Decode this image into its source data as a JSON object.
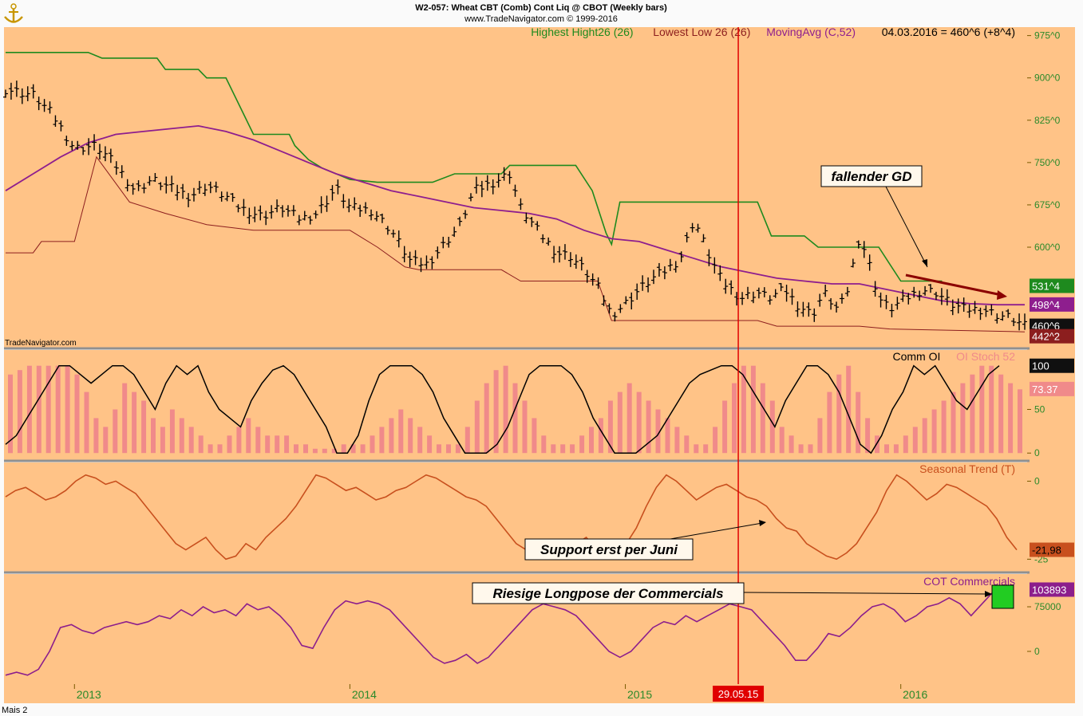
{
  "header": {
    "title": "W2-057:  Wheat CBT (Comb) Cont Liq @ CBOT  (Weekly bars)",
    "subtitle": "www.TradeNavigator.com © 1999-2016",
    "watermark": "TradeNavigator.com",
    "footer": "Mais 2",
    "logo_icon": "anchor-icon"
  },
  "colors": {
    "background": "#ffc387",
    "panel_border": "#909090",
    "green": "#1e8a1e",
    "purple": "#8e1e8e",
    "maroon": "#7d1e32",
    "orange_line": "#c8501e",
    "stoch_bar": "#f08a8a",
    "red_marker": "#e00000",
    "cot_line": "#8c1e8c"
  },
  "chart_data": [
    {
      "type": "ohlc",
      "name": "price-panel",
      "legend": [
        {
          "label": "Highest Hight26 (26)",
          "color": "#1e8a1e"
        },
        {
          "label": "Lowest Low 26 (26)",
          "color": "#8c1e1e"
        },
        {
          "label": "MovingAvg (C,52)",
          "color": "#8e1e8e"
        },
        {
          "label": "04.03.2016 = 460^6 (+8^4)",
          "color": "#000000"
        }
      ],
      "y_ticks": [
        "975^0",
        "900^0",
        "825^0",
        "750^0",
        "675^0",
        "600^0"
      ],
      "y_tick_values": [
        975,
        900,
        825,
        750,
        675,
        600
      ],
      "ylim": [
        422,
        990
      ],
      "value_tags": [
        {
          "label": "531^4",
          "value": 531.5,
          "bg": "#1e8a1e",
          "fg": "#ffffff"
        },
        {
          "label": "498^4",
          "value": 498.5,
          "bg": "#8e1e8e",
          "fg": "#ffffff"
        },
        {
          "label": "460^6",
          "value": 460.75,
          "bg": "#101010",
          "fg": "#ffffff"
        },
        {
          "label": "442^2",
          "value": 442.25,
          "bg": "#8c1e1e",
          "fg": "#ffffff"
        }
      ],
      "annotations": [
        {
          "text": "fallender GD",
          "type": "callout"
        }
      ],
      "x_range": [
        "2012-09",
        "2016-03"
      ],
      "series_points": {
        "close": [
          [
            2012.75,
            880
          ],
          [
            2012.85,
            870
          ],
          [
            2012.92,
            835
          ],
          [
            2013.0,
            775
          ],
          [
            2013.08,
            780
          ],
          [
            2013.15,
            745
          ],
          [
            2013.22,
            700
          ],
          [
            2013.28,
            720
          ],
          [
            2013.35,
            705
          ],
          [
            2013.42,
            690
          ],
          [
            2013.48,
            710
          ],
          [
            2013.55,
            690
          ],
          [
            2013.6,
            670
          ],
          [
            2013.68,
            655
          ],
          [
            2013.75,
            670
          ],
          [
            2013.82,
            650
          ],
          [
            2013.88,
            660
          ],
          [
            2013.95,
            705
          ],
          [
            2014.0,
            670
          ],
          [
            2014.08,
            665
          ],
          [
            2014.15,
            630
          ],
          [
            2014.22,
            575
          ],
          [
            2014.28,
            570
          ],
          [
            2014.35,
            610
          ],
          [
            2014.4,
            640
          ],
          [
            2014.45,
            700
          ],
          [
            2014.52,
            715
          ],
          [
            2014.58,
            730
          ],
          [
            2014.62,
            670
          ],
          [
            2014.68,
            630
          ],
          [
            2014.75,
            590
          ],
          [
            2014.8,
            585
          ],
          [
            2014.85,
            560
          ],
          [
            2014.9,
            530
          ],
          [
            2014.95,
            480
          ],
          [
            2015.0,
            500
          ],
          [
            2015.05,
            525
          ],
          [
            2015.1,
            545
          ],
          [
            2015.15,
            560
          ],
          [
            2015.2,
            580
          ],
          [
            2015.25,
            650
          ],
          [
            2015.3,
            590
          ],
          [
            2015.35,
            540
          ],
          [
            2015.42,
            510
          ],
          [
            2015.48,
            520
          ],
          [
            2015.52,
            510
          ],
          [
            2015.58,
            525
          ],
          [
            2015.62,
            500
          ],
          [
            2015.68,
            480
          ],
          [
            2015.72,
            520
          ],
          [
            2015.77,
            490
          ],
          [
            2015.8,
            510
          ],
          [
            2015.85,
            620
          ],
          [
            2015.88,
            580
          ],
          [
            2015.92,
            510
          ],
          [
            2015.96,
            490
          ],
          [
            2016.02,
            510
          ],
          [
            2016.08,
            525
          ],
          [
            2016.13,
            520
          ],
          [
            2016.18,
            500
          ],
          [
            2016.23,
            490
          ],
          [
            2016.3,
            490
          ],
          [
            2016.35,
            480
          ],
          [
            2016.4,
            475
          ],
          [
            2016.45,
            460
          ]
        ],
        "highest_high_26": [
          [
            2012.75,
            945
          ],
          [
            2013.05,
            945
          ],
          [
            2013.1,
            935
          ],
          [
            2013.3,
            935
          ],
          [
            2013.33,
            915
          ],
          [
            2013.45,
            915
          ],
          [
            2013.48,
            900
          ],
          [
            2013.55,
            900
          ],
          [
            2013.6,
            850
          ],
          [
            2013.65,
            800
          ],
          [
            2013.78,
            800
          ],
          [
            2013.8,
            780
          ],
          [
            2013.85,
            755
          ],
          [
            2013.9,
            740
          ],
          [
            2014.0,
            720
          ],
          [
            2014.1,
            715
          ],
          [
            2014.3,
            715
          ],
          [
            2014.38,
            730
          ],
          [
            2014.55,
            730
          ],
          [
            2014.58,
            745
          ],
          [
            2014.82,
            745
          ],
          [
            2014.88,
            700
          ],
          [
            2014.93,
            625
          ],
          [
            2014.95,
            605
          ],
          [
            2014.98,
            680
          ],
          [
            2015.48,
            680
          ],
          [
            2015.53,
            620
          ],
          [
            2015.65,
            620
          ],
          [
            2015.7,
            600
          ],
          [
            2015.78,
            600
          ],
          [
            2015.92,
            600
          ],
          [
            2015.96,
            570
          ],
          [
            2016.0,
            540
          ],
          [
            2016.15,
            540
          ]
        ],
        "lowest_low_26": [
          [
            2012.75,
            590
          ],
          [
            2012.85,
            590
          ],
          [
            2012.88,
            610
          ],
          [
            2013.0,
            610
          ],
          [
            2013.08,
            760
          ],
          [
            2013.2,
            680
          ],
          [
            2013.33,
            660
          ],
          [
            2013.48,
            640
          ],
          [
            2013.65,
            630
          ],
          [
            2013.85,
            630
          ],
          [
            2014.0,
            630
          ],
          [
            2014.1,
            600
          ],
          [
            2014.2,
            565
          ],
          [
            2014.25,
            560
          ],
          [
            2014.55,
            560
          ],
          [
            2014.62,
            540
          ],
          [
            2014.9,
            540
          ],
          [
            2014.95,
            470
          ],
          [
            2015.0,
            470
          ],
          [
            2015.48,
            470
          ],
          [
            2015.55,
            460
          ],
          [
            2015.65,
            460
          ],
          [
            2015.85,
            460
          ],
          [
            2015.96,
            455
          ],
          [
            2016.45,
            450
          ]
        ],
        "moving_avg_52": [
          [
            2012.75,
            700
          ],
          [
            2012.85,
            730
          ],
          [
            2012.95,
            760
          ],
          [
            2013.05,
            785
          ],
          [
            2013.15,
            800
          ],
          [
            2013.25,
            805
          ],
          [
            2013.35,
            810
          ],
          [
            2013.45,
            815
          ],
          [
            2013.55,
            805
          ],
          [
            2013.65,
            790
          ],
          [
            2013.75,
            770
          ],
          [
            2013.85,
            750
          ],
          [
            2013.95,
            730
          ],
          [
            2014.05,
            715
          ],
          [
            2014.15,
            700
          ],
          [
            2014.25,
            690
          ],
          [
            2014.35,
            680
          ],
          [
            2014.45,
            670
          ],
          [
            2014.55,
            665
          ],
          [
            2014.65,
            660
          ],
          [
            2014.75,
            650
          ],
          [
            2014.85,
            630
          ],
          [
            2014.95,
            615
          ],
          [
            2015.05,
            610
          ],
          [
            2015.15,
            595
          ],
          [
            2015.25,
            580
          ],
          [
            2015.35,
            565
          ],
          [
            2015.45,
            555
          ],
          [
            2015.55,
            545
          ],
          [
            2015.65,
            540
          ],
          [
            2015.75,
            535
          ],
          [
            2015.85,
            535
          ],
          [
            2015.95,
            525
          ],
          [
            2016.05,
            515
          ],
          [
            2016.15,
            505
          ],
          [
            2016.25,
            500
          ],
          [
            2016.35,
            498
          ],
          [
            2016.45,
            498
          ]
        ]
      }
    },
    {
      "type": "bar+line",
      "name": "cot-oi-panel",
      "legend": [
        {
          "label": "Comm OI",
          "color": "#000000"
        },
        {
          "label": "OI Stoch 52",
          "color": "#f08a8a"
        }
      ],
      "y_ticks": [
        "50",
        "0"
      ],
      "y_tick_values": [
        50,
        0
      ],
      "ylim": [
        -8,
        118
      ],
      "value_tags": [
        {
          "label": "100",
          "value": 100,
          "bg": "#101010",
          "fg": "#ffffff"
        },
        {
          "label": "73.37",
          "value": 73.37,
          "bg": "#f08a8a",
          "fg": "#ffffff"
        }
      ],
      "bars": [
        90,
        95,
        100,
        100,
        100,
        100,
        100,
        90,
        70,
        40,
        30,
        50,
        80,
        70,
        60,
        40,
        30,
        50,
        40,
        30,
        20,
        10,
        10,
        20,
        30,
        40,
        30,
        20,
        20,
        20,
        10,
        10,
        5,
        5,
        5,
        10,
        10,
        10,
        20,
        30,
        40,
        50,
        40,
        30,
        20,
        10,
        10,
        10,
        30,
        60,
        80,
        95,
        100,
        80,
        60,
        40,
        20,
        10,
        10,
        10,
        20,
        30,
        40,
        60,
        70,
        80,
        70,
        60,
        50,
        40,
        30,
        20,
        10,
        10,
        30,
        60,
        80,
        100,
        100,
        80,
        60,
        30,
        20,
        10,
        10,
        40,
        70,
        90,
        100,
        70,
        40,
        20,
        10,
        10,
        20,
        30,
        40,
        50,
        60,
        70,
        80,
        90,
        100,
        100,
        90,
        80,
        73
      ],
      "line": [
        10,
        20,
        40,
        60,
        80,
        100,
        100,
        90,
        80,
        90,
        100,
        100,
        90,
        70,
        50,
        80,
        100,
        90,
        100,
        70,
        50,
        40,
        30,
        60,
        80,
        95,
        100,
        90,
        70,
        50,
        30,
        0,
        0,
        20,
        60,
        90,
        100,
        100,
        100,
        90,
        70,
        40,
        20,
        0,
        0,
        0,
        10,
        30,
        60,
        90,
        100,
        100,
        100,
        90,
        70,
        40,
        20,
        0,
        0,
        0,
        10,
        20,
        40,
        60,
        80,
        90,
        95,
        100,
        100,
        90,
        70,
        50,
        30,
        60,
        80,
        100,
        100,
        90,
        70,
        40,
        10,
        0,
        20,
        50,
        70,
        100,
        90,
        100,
        80,
        60,
        50,
        70,
        90,
        100
      ]
    },
    {
      "type": "line",
      "name": "seasonal-trend-panel",
      "legend": [
        {
          "label": "Seasonal Trend (T)",
          "color": "#c8501e"
        }
      ],
      "y_ticks": [
        "0",
        "-25"
      ],
      "y_tick_values": [
        0,
        -25
      ],
      "ylim": [
        -29,
        6
      ],
      "value_tags": [
        {
          "label": "-21,98",
          "value": -21.98,
          "bg": "#c8501e",
          "fg": "#000000"
        }
      ],
      "annotations": [
        {
          "text": "Support erst per Juni",
          "type": "callout"
        }
      ],
      "line": [
        -5,
        -3,
        -2,
        -4,
        -6,
        -5,
        -3,
        0,
        2,
        1,
        -1,
        0,
        -2,
        -4,
        -8,
        -12,
        -16,
        -20,
        -22,
        -20,
        -18,
        -22,
        -25,
        -24,
        -20,
        -22,
        -18,
        -15,
        -12,
        -8,
        -3,
        2,
        1,
        -1,
        -3,
        -2,
        -4,
        -6,
        -5,
        -3,
        -2,
        0,
        2,
        1,
        -1,
        -3,
        -5,
        -6,
        -8,
        -12,
        -16,
        -20,
        -22,
        -21,
        -20,
        -23,
        -24,
        -20,
        -18,
        -22,
        -25,
        -24,
        -20,
        -15,
        -8,
        -2,
        2,
        0,
        -3,
        -6,
        -4,
        -2,
        -1,
        -3,
        -5,
        -6,
        -8,
        -12,
        -15,
        -16,
        -20,
        -22,
        -24,
        -25,
        -23,
        -20,
        -15,
        -10,
        -3,
        2,
        0,
        -3,
        -6,
        -4,
        -1,
        -2,
        -4,
        -6,
        -8,
        -12,
        -18,
        -22
      ]
    },
    {
      "type": "line",
      "name": "cot-commercials-panel",
      "legend": [
        {
          "label": "COT Commercials",
          "color": "#8c1e8c"
        }
      ],
      "y_ticks": [
        "75000",
        "0"
      ],
      "y_tick_values": [
        75000,
        0
      ],
      "ylim": [
        -55000,
        130000
      ],
      "value_tags": [
        {
          "label": "103893",
          "value": 103893,
          "bg": "#8c1e8c",
          "fg": "#ffffff"
        }
      ],
      "annotations": [
        {
          "text": "Riesige Longpose der Commercials",
          "type": "callout"
        }
      ],
      "line": [
        -40000,
        -35000,
        -40000,
        -30000,
        0,
        40000,
        45000,
        35000,
        30000,
        40000,
        45000,
        50000,
        45000,
        50000,
        60000,
        55000,
        70000,
        60000,
        75000,
        65000,
        70000,
        60000,
        80000,
        70000,
        75000,
        60000,
        40000,
        10000,
        5000,
        40000,
        70000,
        85000,
        80000,
        85000,
        80000,
        70000,
        50000,
        30000,
        10000,
        -10000,
        -20000,
        -15000,
        -5000,
        -20000,
        -10000,
        10000,
        30000,
        50000,
        70000,
        80000,
        75000,
        70000,
        60000,
        40000,
        20000,
        0,
        -10000,
        0,
        20000,
        40000,
        50000,
        45000,
        60000,
        50000,
        60000,
        70000,
        80000,
        75000,
        70000,
        50000,
        30000,
        10000,
        -15000,
        -15000,
        5000,
        30000,
        25000,
        40000,
        60000,
        75000,
        80000,
        70000,
        50000,
        60000,
        75000,
        80000,
        90000,
        80000,
        60000,
        80000,
        100000,
        104000
      ]
    }
  ],
  "x_axis": {
    "labels": [
      "2013",
      "2014",
      "2015",
      "29.05.15",
      "2016"
    ],
    "label_values": [
      2013.0,
      2014.0,
      2015.0,
      2015.41,
      2016.0
    ],
    "marker": {
      "label": "29.05.15",
      "value": 2015.41
    }
  }
}
